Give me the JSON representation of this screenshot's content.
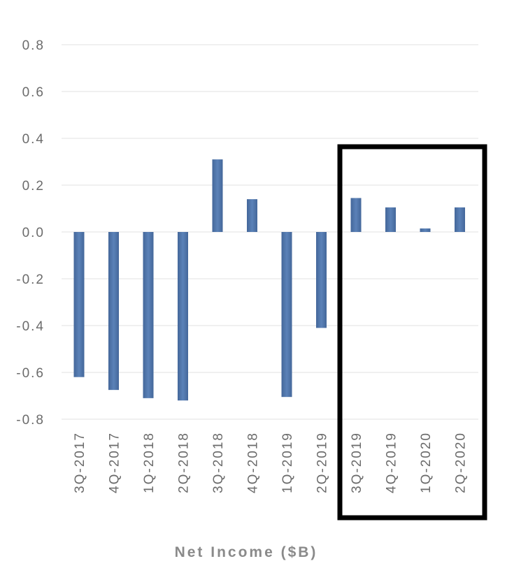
{
  "chart_data": {
    "type": "bar",
    "categories": [
      "3Q-2017",
      "4Q-2017",
      "1Q-2018",
      "2Q-2018",
      "3Q-2018",
      "4Q-2018",
      "1Q-2019",
      "2Q-2019",
      "3Q-2019",
      "4Q-2019",
      "1Q-2020",
      "2Q-2020"
    ],
    "values": [
      -0.62,
      -0.675,
      -0.71,
      -0.72,
      0.31,
      0.14,
      -0.705,
      -0.41,
      0.145,
      0.105,
      0.015,
      0.105
    ],
    "title": "",
    "xlabel": "Net Income ($B)",
    "ylabel": "",
    "ylim": [
      -0.8,
      0.8
    ],
    "yticks": [
      "0.8",
      "0.6",
      "0.4",
      "0.2",
      "0.0",
      "-0.2",
      "-0.4",
      "-0.6",
      "-0.8"
    ],
    "grid": true,
    "legend": "none",
    "highlight": {
      "categories": [
        "3Q-2019",
        "4Q-2019",
        "1Q-2020",
        "2Q-2020"
      ],
      "style": "black box"
    },
    "colors": {
      "bar": "#44679a",
      "bar_light": "#5b82b8",
      "highlight_border": "#000000",
      "grid": "#e2e2e2"
    }
  }
}
